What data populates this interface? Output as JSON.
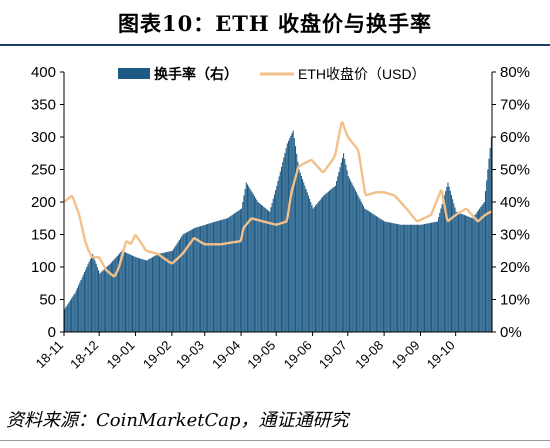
{
  "figure": {
    "title": "图表10：ETH 收盘价与换手率",
    "source": "资料来源：CoinMarketCap，通证通研究"
  },
  "colors": {
    "bars": "#1d5a85",
    "line": "#f2c088",
    "axis": "#000000"
  },
  "chart_data": {
    "type": "bar+line",
    "title": "图表10：ETH 收盘价与换手率",
    "x_tick_labels": [
      "18-11",
      "18-12",
      "19-01",
      "19-02",
      "19-03",
      "19-04",
      "19-05",
      "19-06",
      "19-07",
      "19-08",
      "19-09",
      "19-10"
    ],
    "x_start": "2018-11-01",
    "x_end": "2019-10-31",
    "y_left": {
      "label": "",
      "ticks": [
        "0",
        "50",
        "100",
        "150",
        "200",
        "250",
        "300",
        "350",
        "400"
      ],
      "range": [
        0,
        400
      ]
    },
    "y_right": {
      "label": "",
      "ticks": [
        "0%",
        "10%",
        "20%",
        "30%",
        "40%",
        "50%",
        "60%",
        "70%",
        "80%"
      ],
      "range": [
        0,
        80
      ]
    },
    "legend": {
      "position": "top",
      "items": [
        "换手率（右）",
        "ETH收盘价（USD）"
      ]
    },
    "grid": false,
    "series": [
      {
        "name": "换手率（右）",
        "type": "bar",
        "axis": "right",
        "unit": "%",
        "dates": [
          "2018-11-01",
          "2018-11-10",
          "2018-11-20",
          "2018-11-25",
          "2018-12-01",
          "2018-12-10",
          "2018-12-20",
          "2019-01-01",
          "2019-01-10",
          "2019-01-20",
          "2019-02-01",
          "2019-02-10",
          "2019-02-20",
          "2019-03-01",
          "2019-03-10",
          "2019-03-20",
          "2019-04-01",
          "2019-04-05",
          "2019-04-15",
          "2019-04-25",
          "2019-05-01",
          "2019-05-10",
          "2019-05-15",
          "2019-05-20",
          "2019-06-01",
          "2019-06-10",
          "2019-06-20",
          "2019-06-27",
          "2019-07-01",
          "2019-07-15",
          "2019-08-01",
          "2019-08-15",
          "2019-09-01",
          "2019-09-15",
          "2019-09-24",
          "2019-10-01",
          "2019-10-15",
          "2019-10-25",
          "2019-10-31"
        ],
        "values": [
          7,
          12,
          20,
          24,
          18,
          21,
          25,
          23,
          22,
          24,
          25,
          30,
          32,
          33,
          34,
          35,
          38,
          46,
          40,
          37,
          45,
          58,
          62,
          50,
          38,
          42,
          45,
          55,
          48,
          38,
          34,
          33,
          33,
          34,
          46,
          37,
          35,
          40,
          60
        ]
      },
      {
        "name": "ETH收盘价（USD）",
        "type": "line",
        "axis": "left",
        "unit": "USD",
        "dates": [
          "2018-11-01",
          "2018-11-08",
          "2018-11-14",
          "2018-11-19",
          "2018-11-22",
          "2018-11-25",
          "2018-12-01",
          "2018-12-07",
          "2018-12-14",
          "2018-12-18",
          "2018-12-24",
          "2018-12-28",
          "2019-01-01",
          "2019-01-10",
          "2019-01-20",
          "2019-02-01",
          "2019-02-10",
          "2019-02-20",
          "2019-02-24",
          "2019-03-01",
          "2019-03-15",
          "2019-04-01",
          "2019-04-03",
          "2019-04-10",
          "2019-04-20",
          "2019-05-01",
          "2019-05-10",
          "2019-05-14",
          "2019-05-20",
          "2019-05-31",
          "2019-06-10",
          "2019-06-20",
          "2019-06-26",
          "2019-07-01",
          "2019-07-10",
          "2019-07-16",
          "2019-07-25",
          "2019-08-01",
          "2019-08-10",
          "2019-08-20",
          "2019-08-29",
          "2019-09-10",
          "2019-09-19",
          "2019-09-24",
          "2019-10-01",
          "2019-10-10",
          "2019-10-20",
          "2019-10-26",
          "2019-10-31"
        ],
        "values": [
          200,
          210,
          180,
          140,
          125,
          115,
          115,
          95,
          85,
          100,
          140,
          135,
          150,
          125,
          120,
          105,
          120,
          145,
          140,
          135,
          135,
          140,
          160,
          175,
          170,
          165,
          170,
          215,
          255,
          265,
          245,
          270,
          325,
          300,
          280,
          210,
          215,
          215,
          210,
          190,
          170,
          180,
          220,
          170,
          180,
          190,
          170,
          180,
          185
        ]
      }
    ]
  }
}
